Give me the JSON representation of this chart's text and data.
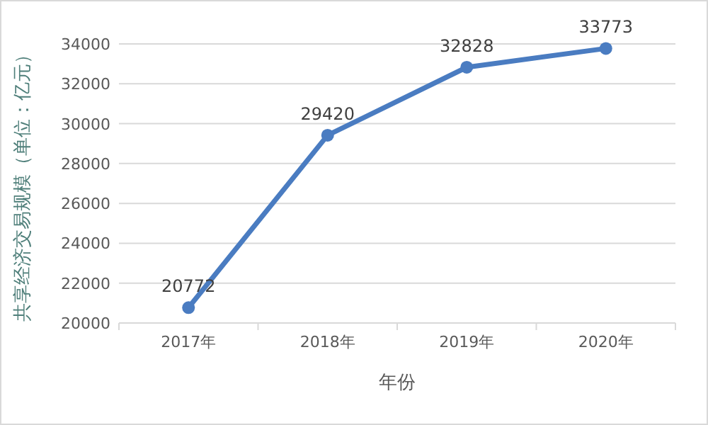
{
  "chart_data": {
    "type": "line",
    "categories": [
      "2017年",
      "2018年",
      "2019年",
      "2020年"
    ],
    "values": [
      20772,
      29420,
      32828,
      33773
    ],
    "color": "#4a7cc1",
    "ylim": [
      20000,
      34000
    ],
    "yticks": [
      20000,
      22000,
      24000,
      26000,
      28000,
      30000,
      32000,
      34000
    ],
    "xlabel": "年份",
    "ylabel": "共享经济交易规模（单位：亿元）",
    "grid": "y",
    "marker": "circle",
    "line_style": "solid",
    "data_labels": true
  }
}
